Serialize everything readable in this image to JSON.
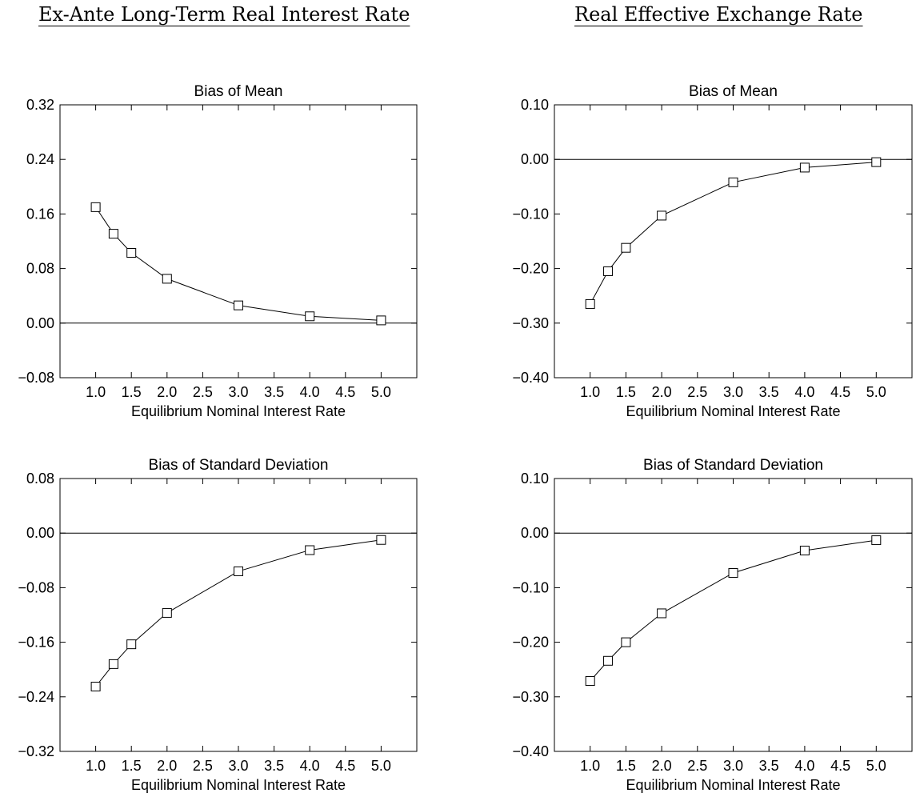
{
  "headings": {
    "left": "Ex-Ante Long-Term Real Interest Rate",
    "right": "Real Effective Exchange Rate"
  },
  "style": {
    "line_color": "#000000",
    "background": "#ffffff",
    "marker": "square"
  },
  "chart_data": [
    {
      "type": "line",
      "title": "Bias of Mean",
      "xlabel": "Equilibrium Nominal Interest Rate",
      "ylabel": "",
      "xlim": [
        0.5,
        5.5
      ],
      "ylim": [
        -0.08,
        0.32
      ],
      "x_ticks": [
        "1.0",
        "1.5",
        "2.0",
        "2.5",
        "3.0",
        "3.5",
        "4.0",
        "4.5",
        "5.0"
      ],
      "y_ticks": [
        "0.32",
        "0.24",
        "0.16",
        "0.08",
        "0.00",
        "−0.08"
      ],
      "reference_line": 0,
      "grid": false,
      "legend": "none",
      "x": [
        1.0,
        1.25,
        1.5,
        2.0,
        3.0,
        4.0,
        5.0
      ],
      "values": [
        0.17,
        0.131,
        0.103,
        0.065,
        0.026,
        0.01,
        0.004
      ]
    },
    {
      "type": "line",
      "title": "Bias of Mean",
      "xlabel": "Equilibrium Nominal Interest Rate",
      "ylabel": "",
      "xlim": [
        0.5,
        5.5
      ],
      "ylim": [
        -0.4,
        0.1
      ],
      "x_ticks": [
        "1.0",
        "1.5",
        "2.0",
        "2.5",
        "3.0",
        "3.5",
        "4.0",
        "4.5",
        "5.0"
      ],
      "y_ticks": [
        "0.10",
        "0.00",
        "−0.10",
        "−0.20",
        "−0.30",
        "−0.40"
      ],
      "reference_line": 0,
      "grid": false,
      "legend": "none",
      "x": [
        1.0,
        1.25,
        1.5,
        2.0,
        3.0,
        4.0,
        5.0
      ],
      "values": [
        -0.265,
        -0.205,
        -0.162,
        -0.103,
        -0.042,
        -0.015,
        -0.005
      ]
    },
    {
      "type": "line",
      "title": "Bias of Standard Deviation",
      "xlabel": "Equilibrium Nominal Interest Rate",
      "ylabel": "",
      "xlim": [
        0.5,
        5.5
      ],
      "ylim": [
        -0.32,
        0.08
      ],
      "x_ticks": [
        "1.0",
        "1.5",
        "2.0",
        "2.5",
        "3.0",
        "3.5",
        "4.0",
        "4.5",
        "5.0"
      ],
      "y_ticks": [
        "0.08",
        "0.00",
        "−0.08",
        "−0.16",
        "−0.24",
        "−0.32"
      ],
      "reference_line": 0,
      "grid": false,
      "legend": "none",
      "x": [
        1.0,
        1.25,
        1.5,
        2.0,
        3.0,
        4.0,
        5.0
      ],
      "values": [
        -0.225,
        -0.192,
        -0.163,
        -0.117,
        -0.056,
        -0.025,
        -0.01
      ]
    },
    {
      "type": "line",
      "title": "Bias of Standard Deviation",
      "xlabel": "Equilibrium Nominal Interest Rate",
      "ylabel": "",
      "xlim": [
        0.5,
        5.5
      ],
      "ylim": [
        -0.4,
        0.1
      ],
      "x_ticks": [
        "1.0",
        "1.5",
        "2.0",
        "2.5",
        "3.0",
        "3.5",
        "4.0",
        "4.5",
        "5.0"
      ],
      "y_ticks": [
        "0.10",
        "0.00",
        "−0.10",
        "−0.20",
        "−0.30",
        "−0.40"
      ],
      "reference_line": 0,
      "grid": false,
      "legend": "none",
      "x": [
        1.0,
        1.25,
        1.5,
        2.0,
        3.0,
        4.0,
        5.0
      ],
      "values": [
        -0.271,
        -0.234,
        -0.2,
        -0.147,
        -0.073,
        -0.032,
        -0.013
      ]
    }
  ]
}
